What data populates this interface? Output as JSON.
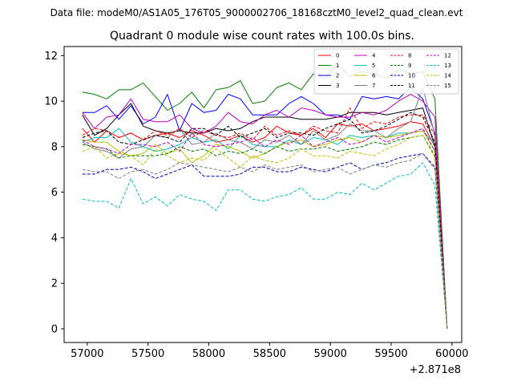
{
  "suptitle": "Data file: modeM0/AS1A05_176T05_9000002706_18168cztM0_level2_quad_clean.evt",
  "chart_data": {
    "type": "line",
    "title": "Quadrant 0 module wise count rates with 100.0s bins.",
    "xlabel": "",
    "ylabel": "",
    "x_offset_label": "+2.871e8",
    "xlim": [
      56810,
      60080
    ],
    "ylim": [
      -0.6,
      12.4
    ],
    "xticks": [
      57000,
      57500,
      58000,
      58500,
      59000,
      59500,
      60000
    ],
    "xtick_labels": [
      "57000",
      "57500",
      "58000",
      "58500",
      "59000",
      "59500",
      "60000"
    ],
    "yticks": [
      0,
      2,
      4,
      6,
      8,
      10,
      12
    ],
    "ytick_labels": [
      "0",
      "2",
      "4",
      "6",
      "8",
      "10",
      "12"
    ],
    "grid": false,
    "legend_position": "top-right",
    "legend_columns": 4,
    "x": [
      56960,
      57060,
      57160,
      57260,
      57360,
      57460,
      57560,
      57660,
      57760,
      57860,
      57960,
      58060,
      58160,
      58260,
      58360,
      58460,
      58560,
      58660,
      58760,
      58860,
      58960,
      59060,
      59160,
      59260,
      59360,
      59460,
      59560,
      59660,
      59760,
      59860,
      59960
    ],
    "series": [
      {
        "name": "0",
        "color": "#ff0000",
        "dash": "solid",
        "values": [
          8.8,
          8.2,
          8.7,
          8.4,
          8.6,
          8.3,
          8.5,
          8.6,
          8.4,
          8.7,
          8.5,
          8.2,
          8.3,
          8.5,
          8.2,
          8.4,
          8.9,
          8.6,
          8.5,
          8.8,
          8.4,
          9.0,
          8.9,
          9.0,
          8.7,
          8.8,
          8.9,
          9.1,
          9.0,
          8.0,
          0.0
        ]
      },
      {
        "name": "1",
        "color": "#008000",
        "dash": "solid",
        "values": [
          10.4,
          10.3,
          10.1,
          10.5,
          10.5,
          10.8,
          10.2,
          9.6,
          9.9,
          10.4,
          9.7,
          10.5,
          10.6,
          10.9,
          9.9,
          10.0,
          10.6,
          10.8,
          10.5,
          11.2,
          11.0,
          11.6,
          11.1,
          11.3,
          11.2,
          11.0,
          11.4,
          11.2,
          11.3,
          10.1,
          0.0
        ]
      },
      {
        "name": "2",
        "color": "#0000ff",
        "dash": "solid",
        "values": [
          9.5,
          9.5,
          9.8,
          9.2,
          9.8,
          9.0,
          9.3,
          10.3,
          8.7,
          9.9,
          9.5,
          9.6,
          10.3,
          10.1,
          9.4,
          9.4,
          9.4,
          9.9,
          10.2,
          9.9,
          9.4,
          9.4,
          9.2,
          10.2,
          10.1,
          10.2,
          10.1,
          10.6,
          10.1,
          8.6,
          0.0
        ]
      },
      {
        "name": "3",
        "color": "#000000",
        "dash": "solid",
        "values": [
          9.4,
          8.5,
          8.8,
          9.4,
          9.9,
          8.9,
          8.7,
          8.6,
          8.7,
          8.6,
          8.6,
          8.8,
          8.7,
          8.8,
          9.1,
          9.3,
          9.3,
          9.3,
          9.2,
          9.2,
          9.2,
          9.3,
          9.5,
          9.5,
          9.5,
          9.4,
          9.5,
          9.6,
          9.7,
          8.0,
          0.0
        ]
      },
      {
        "name": "4",
        "color": "#bf00bf",
        "dash": "solid",
        "values": [
          9.5,
          8.8,
          9.3,
          9.4,
          10.1,
          9.2,
          9.1,
          9.1,
          9.4,
          8.8,
          8.6,
          8.9,
          9.5,
          9.1,
          9.0,
          9.4,
          9.6,
          9.3,
          9.7,
          9.6,
          9.4,
          9.3,
          9.3,
          9.5,
          9.4,
          9.6,
          10.0,
          10.3,
          10.0,
          9.3,
          0.0
        ]
      },
      {
        "name": "5",
        "color": "#00bfbf",
        "dash": "solid",
        "values": [
          8.2,
          8.4,
          8.4,
          8.8,
          8.2,
          8.0,
          7.8,
          7.9,
          8.1,
          8.4,
          8.2,
          8.3,
          7.9,
          8.5,
          8.1,
          8.0,
          8.0,
          8.3,
          8.1,
          8.4,
          8.3,
          8.1,
          8.5,
          8.4,
          8.5,
          8.4,
          8.6,
          8.6,
          8.7,
          8.1,
          0.0
        ]
      },
      {
        "name": "6",
        "color": "#bfbf00",
        "dash": "solid",
        "values": [
          8.3,
          8.2,
          8.2,
          7.8,
          7.6,
          7.7,
          8.1,
          7.7,
          7.9,
          7.3,
          7.6,
          8.1,
          8.0,
          7.8,
          7.5,
          7.7,
          8.0,
          8.2,
          8.3,
          8.0,
          8.1,
          8.3,
          8.4,
          8.2,
          8.5,
          8.4,
          8.5,
          8.6,
          8.7,
          7.8,
          0.0
        ]
      },
      {
        "name": "7",
        "color": "#808080",
        "dash": "solid",
        "values": [
          8.2,
          7.9,
          7.8,
          7.5,
          7.9,
          8.0,
          8.5,
          8.4,
          8.8,
          8.1,
          8.2,
          8.6,
          8.3,
          8.2,
          7.9,
          8.3,
          8.2,
          8.5,
          8.1,
          8.7,
          8.3,
          8.5,
          9.0,
          8.7,
          8.7,
          8.4,
          8.8,
          9.1,
          10.6,
          8.5,
          0.0
        ]
      },
      {
        "name": "8",
        "color": "#ff0000",
        "dash": "dashed",
        "values": [
          8.5,
          8.8,
          8.7,
          8.4,
          8.6,
          8.3,
          8.7,
          8.5,
          8.8,
          8.4,
          8.7,
          8.5,
          8.4,
          8.6,
          8.3,
          8.9,
          8.5,
          8.7,
          8.5,
          8.9,
          8.7,
          8.6,
          9.7,
          8.8,
          9.1,
          9.0,
          9.3,
          9.4,
          9.4,
          8.5,
          0.0
        ]
      },
      {
        "name": "9",
        "color": "#008000",
        "dash": "dashed",
        "values": [
          8.1,
          8.0,
          7.9,
          7.5,
          7.6,
          7.6,
          7.6,
          7.7,
          8.0,
          7.8,
          7.9,
          7.6,
          7.8,
          7.7,
          7.9,
          7.7,
          8.0,
          7.8,
          7.9,
          7.9,
          8.0,
          7.8,
          7.9,
          8.0,
          8.2,
          8.1,
          8.3,
          8.4,
          8.5,
          7.6,
          0.0
        ]
      },
      {
        "name": "10",
        "color": "#0000bf",
        "dash": "dashed",
        "values": [
          6.8,
          6.8,
          7.0,
          7.0,
          7.1,
          6.9,
          6.6,
          6.8,
          7.0,
          7.2,
          6.7,
          6.7,
          6.7,
          6.8,
          7.1,
          7.1,
          6.9,
          6.9,
          7.1,
          7.0,
          6.9,
          7.1,
          7.3,
          7.0,
          7.2,
          7.3,
          7.5,
          7.6,
          7.7,
          7.1,
          0.0
        ]
      },
      {
        "name": "11",
        "color": "#000000",
        "dash": "dashed",
        "values": [
          8.4,
          8.6,
          8.7,
          8.2,
          8.1,
          8.3,
          8.5,
          8.4,
          8.2,
          8.8,
          8.8,
          8.5,
          8.9,
          8.4,
          8.6,
          8.8,
          8.4,
          8.6,
          8.6,
          8.5,
          8.8,
          9.0,
          9.2,
          8.6,
          8.7,
          8.9,
          9.2,
          9.5,
          9.3,
          8.2,
          0.0
        ]
      },
      {
        "name": "12",
        "color": "#bf00bf",
        "dash": "dashed",
        "values": [
          8.3,
          8.0,
          7.9,
          7.7,
          8.1,
          8.1,
          8.0,
          8.2,
          7.8,
          8.6,
          8.1,
          8.0,
          8.1,
          8.2,
          8.4,
          8.0,
          8.3,
          8.1,
          8.5,
          8.0,
          8.2,
          8.4,
          8.1,
          8.2,
          8.5,
          8.2,
          8.4,
          8.6,
          8.8,
          7.8,
          0.0
        ]
      },
      {
        "name": "13",
        "color": "#00bfbf",
        "dash": "dashed",
        "values": [
          5.7,
          5.6,
          5.6,
          5.3,
          6.6,
          5.5,
          5.8,
          5.4,
          5.9,
          5.7,
          5.6,
          5.2,
          6.1,
          6.1,
          5.7,
          5.6,
          5.8,
          5.9,
          6.2,
          5.7,
          5.7,
          6.0,
          5.9,
          6.4,
          6.1,
          6.4,
          6.7,
          6.8,
          7.3,
          6.3,
          0.0
        ]
      },
      {
        "name": "14",
        "color": "#bfbf00",
        "dash": "dashed",
        "values": [
          7.8,
          8.0,
          7.5,
          7.7,
          7.6,
          7.2,
          7.9,
          7.6,
          7.3,
          7.5,
          7.4,
          7.9,
          7.5,
          7.1,
          7.6,
          7.4,
          7.3,
          7.5,
          7.9,
          7.6,
          7.6,
          7.5,
          7.8,
          7.7,
          7.6,
          7.9,
          8.1,
          8.4,
          8.5,
          7.5,
          0.0
        ]
      },
      {
        "name": "15",
        "color": "#808080",
        "dash": "dashed",
        "values": [
          7.0,
          6.9,
          6.9,
          6.6,
          6.9,
          7.0,
          6.8,
          7.0,
          7.3,
          7.2,
          7.1,
          7.0,
          6.9,
          7.1,
          6.9,
          7.2,
          7.0,
          7.1,
          7.2,
          6.9,
          7.0,
          7.1,
          6.8,
          7.0,
          7.2,
          7.1,
          7.3,
          7.4,
          7.7,
          7.0,
          0.0
        ]
      }
    ]
  }
}
